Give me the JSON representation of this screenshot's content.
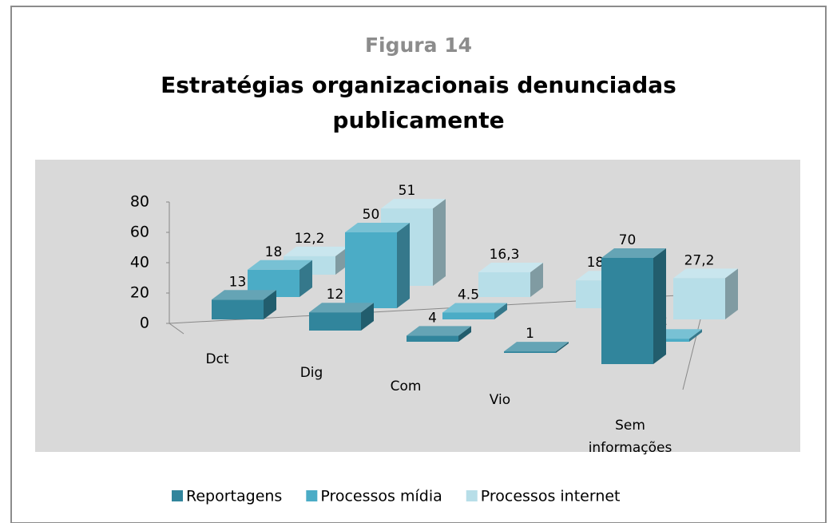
{
  "chart_data": {
    "type": "bar3d",
    "title": "Figura 14",
    "subtitle": "Estratégias organizacionais denunciadas publicamente",
    "categories": [
      "Dct",
      "Dig",
      "Com",
      "Vio",
      "Sem informações"
    ],
    "series": [
      {
        "name": "Reportagens",
        "color": "#31859c",
        "values": [
          13,
          12,
          4,
          1,
          70
        ]
      },
      {
        "name": "Processos mídia",
        "color": "#4bacc6",
        "values": [
          18,
          50,
          4.5,
          null,
          2
        ]
      },
      {
        "name": "Processos internet",
        "color": "#b7dee8",
        "values": [
          12.2,
          51,
          16.3,
          18.3,
          27.2
        ],
        "value_labels": [
          "12,2",
          "51",
          "16,3",
          "18,3",
          "27,2"
        ]
      }
    ],
    "ylim": [
      0,
      80
    ],
    "yticks": [
      0,
      20,
      40,
      60,
      80
    ],
    "legend": "bottom"
  }
}
